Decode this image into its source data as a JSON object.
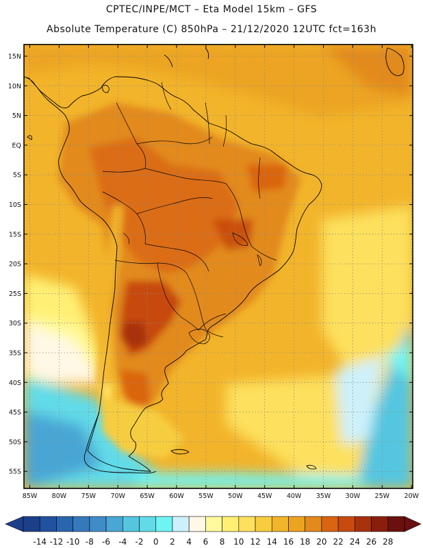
{
  "header": {
    "line1": "CPTEC/INPE/MCT –  Eta Model 15km – GFS",
    "line2": "Absolute Temperature (C) 850hPa – 21/12/2020 12UTC fct=163h"
  },
  "map": {
    "lat_labels": [
      "15N",
      "10N",
      "5N",
      "EQ",
      "5S",
      "10S",
      "15S",
      "20S",
      "25S",
      "30S",
      "35S",
      "40S",
      "45S",
      "50S",
      "55S"
    ],
    "lon_labels": [
      "85W",
      "80W",
      "75W",
      "70W",
      "65W",
      "60W",
      "55W",
      "50W",
      "45W",
      "40W",
      "35W",
      "30W",
      "25W",
      "20W"
    ]
  },
  "colorbar": {
    "labels": [
      "-14",
      "-12",
      "-10",
      "-8",
      "-6",
      "-4",
      "-2",
      "0",
      "2",
      "4",
      "6",
      "8",
      "10",
      "12",
      "14",
      "16",
      "18",
      "20",
      "22",
      "24",
      "26",
      "28"
    ],
    "colors": [
      "#1d3f8a",
      "#2152a0",
      "#2a66b0",
      "#3678bc",
      "#3f8cc8",
      "#4aa6d4",
      "#55c6e0",
      "#62dbe8",
      "#6ff4f4",
      "#cdf1fa",
      "#fff8e6",
      "#fffa9e",
      "#fff075",
      "#fde05d",
      "#f7cd3f",
      "#f2b42a",
      "#eca420",
      "#e28a1b",
      "#da6510",
      "#c84a0e",
      "#a8320c",
      "#8a1e0c",
      "#6a1010"
    ]
  }
}
